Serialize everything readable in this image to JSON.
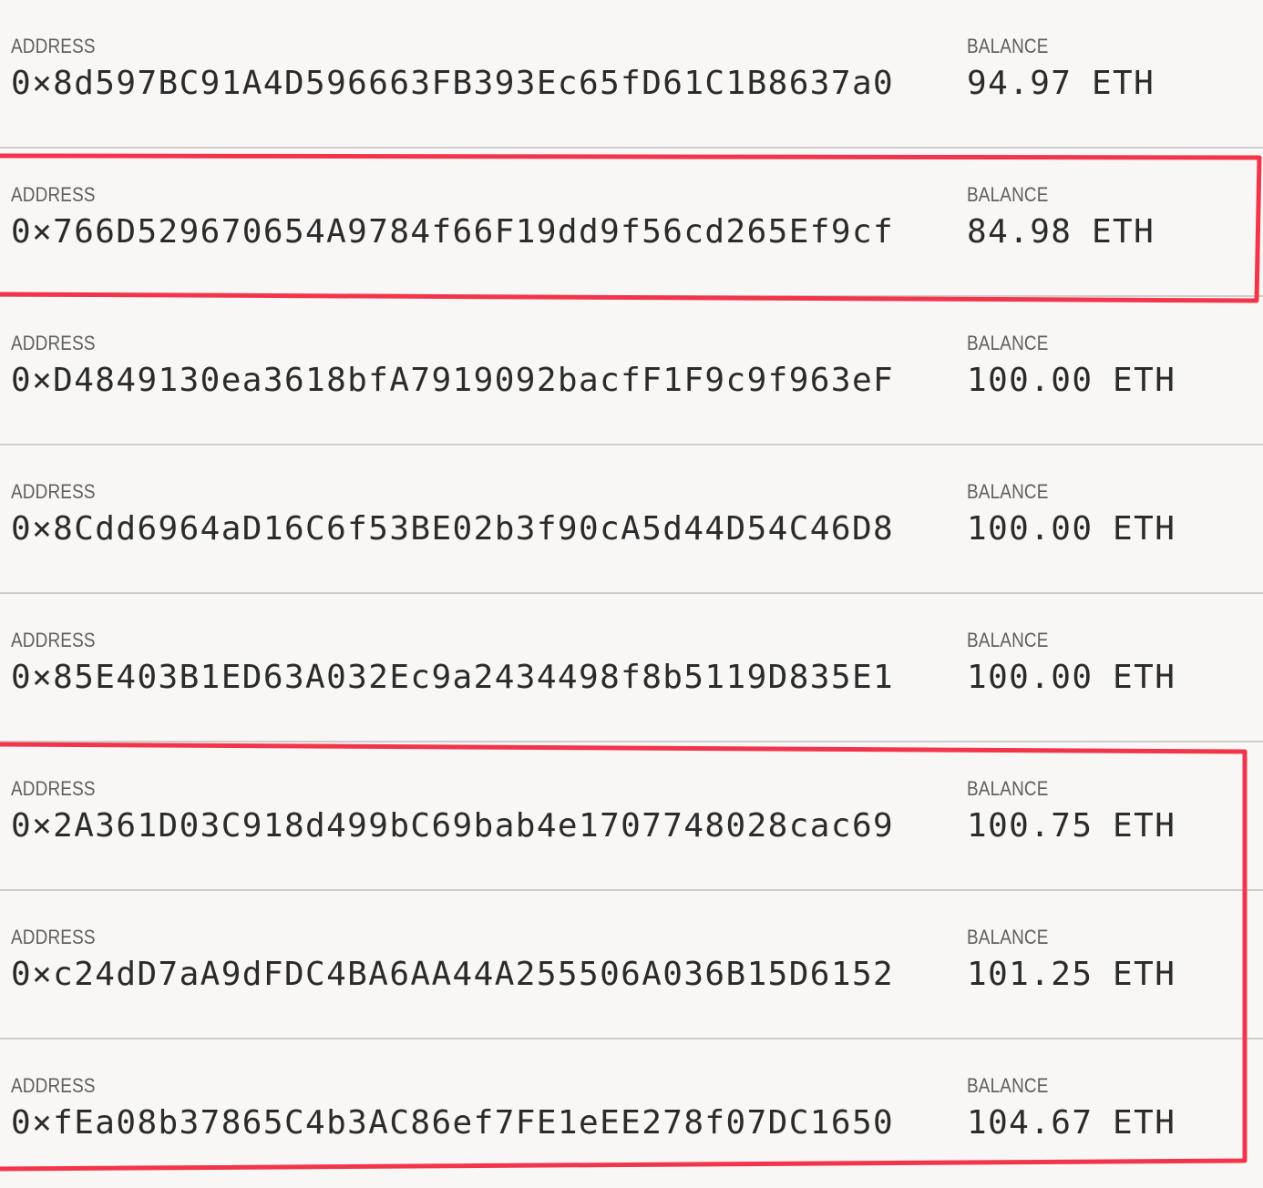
{
  "labels": {
    "address": "ADDRESS",
    "balance": "BALANCE"
  },
  "accounts": [
    {
      "address": "0×8d597BC91A4D596663FB393Ec65fD61C1B8637a0",
      "balance": "94.97",
      "unit": "ETH"
    },
    {
      "address": "0×766D529670654A9784f66F19dd9f56cd265Ef9cf",
      "balance": "84.98",
      "unit": "ETH"
    },
    {
      "address": "0×D4849130ea3618bfA7919092bacfF1F9c9f963eF",
      "balance": "100.00",
      "unit": "ETH"
    },
    {
      "address": "0×8Cdd6964aD16C6f53BE02b3f90cA5d44D54C46D8",
      "balance": "100.00",
      "unit": "ETH"
    },
    {
      "address": "0×85E403B1ED63A032Ec9a2434498f8b5119D835E1",
      "balance": "100.00",
      "unit": "ETH"
    },
    {
      "address": "0×2A361D03C918d499bC69bab4e1707748028cac69",
      "balance": "100.75",
      "unit": "ETH"
    },
    {
      "address": "0×c24dD7aA9dFDC4BA6AA44A255506A036B15D6152",
      "balance": "101.25",
      "unit": "ETH"
    },
    {
      "address": "0×fEa08b37865C4b3AC86ef7FE1eEE278f07DC1650",
      "balance": "104.67",
      "unit": "ETH"
    }
  ],
  "colors": {
    "background": "#f8f7f5",
    "highlight": "#f2354a",
    "divider": "#cfcdca"
  }
}
